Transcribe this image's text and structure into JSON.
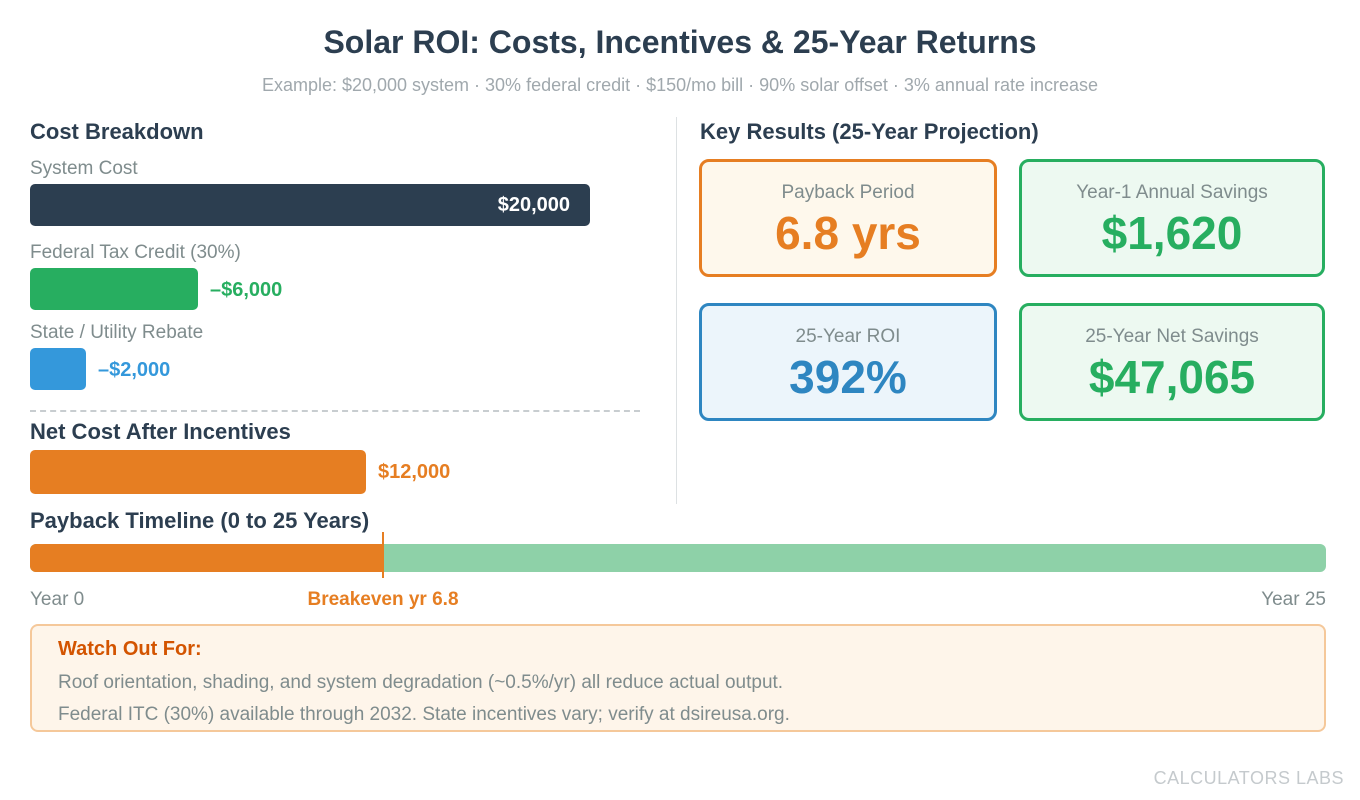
{
  "header": {
    "title": "Solar ROI: Costs, Incentives & 25-Year Returns",
    "subtitle": "Example: $20,000 system · 30% federal credit · $150/mo bill · 90% solar offset · 3% annual rate increase"
  },
  "cost_breakdown": {
    "heading": "Cost Breakdown",
    "net_heading": "Net Cost After Incentives"
  },
  "chart_data": {
    "type": "bar",
    "title": "Cost Breakdown",
    "orientation": "horizontal",
    "categories": [
      "System Cost",
      "Federal Tax Credit (30%)",
      "State / Utility Rebate",
      "Net Cost After Incentives"
    ],
    "values": [
      20000,
      6000,
      2000,
      12000
    ],
    "value_labels": [
      "$20,000",
      "–$6,000",
      "–$2,000",
      "$12,000"
    ],
    "colors": [
      "#2c3e50",
      "#27ae60",
      "#3498db",
      "#e67e22"
    ],
    "xlim": [
      0,
      20000
    ]
  },
  "results": {
    "heading": "Key Results (25-Year Projection)",
    "cards": [
      {
        "label": "Payback Period",
        "value": "6.8 yrs",
        "color": "#e67e22"
      },
      {
        "label": "Year-1 Annual Savings",
        "value": "$1,620",
        "color": "#27ae60"
      },
      {
        "label": "25-Year ROI",
        "value": "392%",
        "color": "#2e86c1"
      },
      {
        "label": "25-Year Net Savings",
        "value": "$47,065",
        "color": "#27ae60"
      }
    ]
  },
  "timeline": {
    "heading": "Payback Timeline (0 to 25 Years)",
    "start_label": "Year 0",
    "end_label": "Year 25",
    "breakeven_label": "Breakeven yr 6.8",
    "breakeven_year": 6.8,
    "total_years": 25
  },
  "watch_out": {
    "title": "Watch Out For:",
    "lines": [
      "Roof orientation, shading, and system degradation (~0.5%/yr) all reduce actual output.",
      "Federal ITC (30%) available through 2032. State incentives vary; verify at dsireusa.org."
    ]
  },
  "brand": "CALCULATORS LABS"
}
